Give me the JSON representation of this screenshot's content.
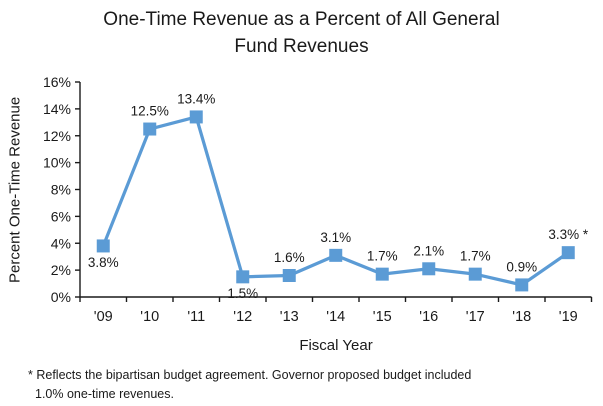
{
  "title": {
    "line1": "One-Time Revenue as a Percent of All General",
    "line2": "Fund Revenues"
  },
  "chart_data": {
    "type": "line",
    "categories": [
      "'09",
      "'10",
      "'11",
      "'12",
      "'13",
      "'14",
      "'15",
      "'16",
      "'17",
      "'18",
      "'19"
    ],
    "values": [
      3.8,
      12.5,
      13.4,
      1.5,
      1.6,
      3.1,
      1.7,
      2.1,
      1.7,
      0.9,
      3.3
    ],
    "point_labels": [
      "3.8%",
      "12.5%",
      "13.4%",
      "1.5%",
      "1.6%",
      "3.1%",
      "1.7%",
      "2.1%",
      "1.7%",
      "0.9%",
      "3.3% *"
    ],
    "label_placement": [
      "below",
      "above",
      "above",
      "below",
      "above",
      "above",
      "above",
      "above",
      "above",
      "above",
      "above"
    ],
    "title": "One-Time Revenue as a Percent of All General Fund Revenues",
    "xlabel": "Fiscal Year",
    "ylabel": "Percent One-Time Revenue",
    "ylim": [
      0,
      16
    ],
    "ytick_step": 2,
    "ytick_labels": [
      "0%",
      "2%",
      "4%",
      "6%",
      "8%",
      "10%",
      "12%",
      "14%",
      "16%"
    ],
    "grid": false,
    "legend": "none",
    "line_color": "#5B9BD5",
    "axis_color": "#1a1a1a",
    "marker": "square"
  },
  "footnote": {
    "line1": "* Reflects the bipartisan budget agreement. Governor proposed budget included",
    "line2": "1.0% one-time revenues."
  }
}
